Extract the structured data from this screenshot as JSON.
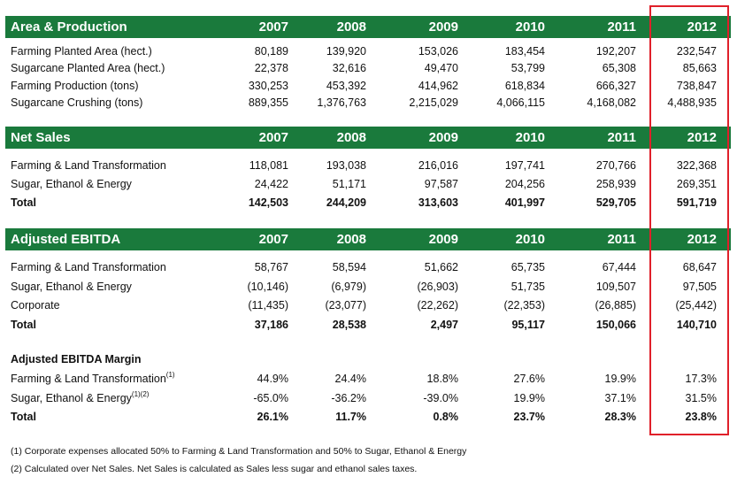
{
  "years": [
    "2007",
    "2008",
    "2009",
    "2010",
    "2011",
    "2012"
  ],
  "sections": [
    {
      "title": "Area & Production",
      "rows": [
        {
          "label": "Farming Planted Area (hect.)",
          "values": [
            "80,189",
            "139,920",
            "153,026",
            "183,454",
            "192,207",
            "232,547"
          ]
        },
        {
          "label": "Sugarcane Planted Area (hect.)",
          "values": [
            "22,378",
            "32,616",
            "49,470",
            "53,799",
            "65,308",
            "85,663"
          ]
        },
        {
          "label": "Farming Production (tons)",
          "values": [
            "330,253",
            "453,392",
            "414,962",
            "618,834",
            "666,327",
            "738,847"
          ]
        },
        {
          "label": "Sugarcane Crushing (tons)",
          "values": [
            "889,355",
            "1,376,763",
            "2,215,029",
            "4,066,115",
            "4,168,082",
            "4,488,935"
          ]
        }
      ]
    },
    {
      "title": "Net Sales",
      "rows": [
        {
          "label": "Farming & Land Transformation",
          "values": [
            "118,081",
            "193,038",
            "216,016",
            "197,741",
            "270,766",
            "322,368"
          ]
        },
        {
          "label": "Sugar, Ethanol & Energy",
          "values": [
            "24,422",
            "51,171",
            "97,587",
            "204,256",
            "258,939",
            "269,351"
          ]
        },
        {
          "label": "Total",
          "values": [
            "142,503",
            "244,209",
            "313,603",
            "401,997",
            "529,705",
            "591,719"
          ]
        }
      ]
    },
    {
      "title": "Adjusted EBITDA",
      "rows": [
        {
          "label": "Farming & Land Transformation",
          "values": [
            "58,767",
            "58,594",
            "51,662",
            "65,735",
            "67,444",
            "68,647"
          ]
        },
        {
          "label": "Sugar, Ethanol & Energy",
          "values": [
            "(10,146)",
            "(6,979)",
            "(26,903)",
            "51,735",
            "109,507",
            "97,505"
          ]
        },
        {
          "label": "Corporate",
          "values": [
            "(11,435)",
            "(23,077)",
            "(22,262)",
            "(22,353)",
            "(26,885)",
            "(25,442)"
          ]
        },
        {
          "label": "Total",
          "values": [
            "37,186",
            "28,538",
            "2,497",
            "95,117",
            "150,066",
            "140,710"
          ]
        }
      ]
    }
  ],
  "margin": {
    "title": "Adjusted EBITDA Margin",
    "rows": [
      {
        "label": "Farming & Land Transformation",
        "sup": "(1)",
        "values": [
          "44.9%",
          "24.4%",
          "18.8%",
          "27.6%",
          "19.9%",
          "17.3%"
        ]
      },
      {
        "label": "Sugar, Ethanol & Energy",
        "sup": "(1)(2)",
        "values": [
          "-65.0%",
          "-36.2%",
          "-39.0%",
          "19.9%",
          "37.1%",
          "31.5%"
        ]
      },
      {
        "label": "Total",
        "sup": "",
        "values": [
          "26.1%",
          "11.7%",
          "0.8%",
          "23.7%",
          "28.3%",
          "23.8%"
        ]
      }
    ]
  },
  "footnotes": [
    "(1) Corporate expenses allocated 50% to Farming & Land Transformation and 50% to Sugar, Ethanol & Energy",
    "(2) Calculated over Net Sales. Net Sales is calculated as Sales less sugar and ethanol sales taxes."
  ],
  "highlight_color": "#e0202a",
  "header_color": "#1a7a3c"
}
